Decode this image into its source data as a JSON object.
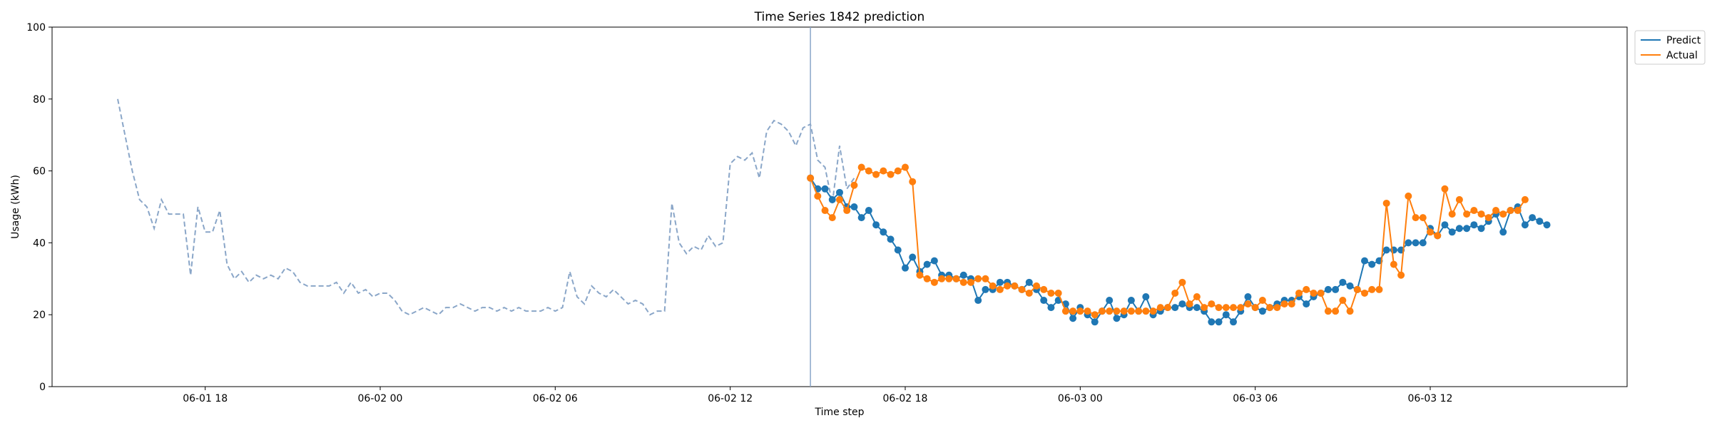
{
  "chart_data": {
    "type": "line",
    "title": "Time Series 1842 prediction",
    "xlabel": "Time step",
    "ylabel": "Usage (kWh)",
    "ylim": [
      0,
      100
    ],
    "yticks": [
      0,
      20,
      40,
      60,
      80,
      100
    ],
    "xlim": [
      "2024-06-01T12:45",
      "2024-06-03T18:45"
    ],
    "xticks": [
      {
        "t": "2024-06-01T18:00",
        "label": "06-01 18"
      },
      {
        "t": "2024-06-02T00:00",
        "label": "06-02 00"
      },
      {
        "t": "2024-06-02T06:00",
        "label": "06-02 06"
      },
      {
        "t": "2024-06-02T12:00",
        "label": "06-02 12"
      },
      {
        "t": "2024-06-02T18:00",
        "label": "06-02 18"
      },
      {
        "t": "2024-06-03T00:00",
        "label": "06-03 00"
      },
      {
        "t": "2024-06-03T06:00",
        "label": "06-03 06"
      },
      {
        "t": "2024-06-03T12:00",
        "label": "06-03 12"
      }
    ],
    "grid": false,
    "legend_position": "outside-top-right",
    "vertical_marker_x": "2024-06-02T14:45",
    "colors": {
      "history": "#8aa6c8",
      "predict": "#1f77b4",
      "actual": "#ff7f0e",
      "marker": "#8aa6c8"
    },
    "history": {
      "start": "2024-06-01T15:00",
      "step_minutes": 15,
      "values": [
        80,
        70,
        60,
        52,
        50,
        44,
        52,
        48,
        48,
        48,
        31,
        50,
        43,
        43,
        49,
        34,
        30,
        32,
        29,
        31,
        30,
        31,
        30,
        33,
        32,
        29,
        28,
        28,
        28,
        28,
        29,
        26,
        29,
        26,
        27,
        25,
        26,
        26,
        24,
        21,
        20,
        21,
        22,
        21,
        20,
        22,
        22,
        23,
        22,
        21,
        22,
        22,
        21,
        22,
        21,
        22,
        21,
        21,
        21,
        22,
        21,
        22,
        32,
        25,
        23,
        28,
        26,
        25,
        27,
        25,
        23,
        24,
        23,
        20,
        21,
        21,
        51,
        40,
        37,
        39,
        38,
        42,
        39,
        40,
        62,
        64,
        63,
        65,
        58,
        71,
        74,
        73,
        71,
        67,
        72,
        73,
        63,
        61,
        51,
        67,
        55,
        58
      ]
    },
    "series": [
      {
        "name": "Predict",
        "start": "2024-06-02T14:45",
        "step_minutes": 15,
        "values": [
          58,
          55,
          55,
          52,
          54,
          50,
          50,
          47,
          49,
          45,
          43,
          41,
          38,
          33,
          36,
          32,
          34,
          35,
          31,
          31,
          30,
          31,
          30,
          24,
          27,
          27,
          29,
          29,
          28,
          27,
          29,
          27,
          24,
          22,
          24,
          23,
          19,
          22,
          20,
          18,
          21,
          24,
          19,
          20,
          24,
          21,
          25,
          20,
          21,
          22,
          22,
          23,
          22,
          22,
          21,
          18,
          18,
          20,
          18,
          21,
          25,
          22,
          21,
          22,
          23,
          24,
          24,
          25,
          23,
          25,
          26,
          27,
          27,
          29,
          28,
          27,
          35,
          34,
          35,
          38,
          38,
          38,
          40,
          40,
          40,
          44,
          42,
          45,
          43,
          44,
          44,
          45,
          44,
          46,
          48,
          43,
          49,
          50,
          45,
          47,
          46,
          45
        ]
      },
      {
        "name": "Actual",
        "start": "2024-06-02T14:45",
        "step_minutes": 15,
        "values": [
          58,
          53,
          49,
          47,
          52,
          49,
          56,
          61,
          60,
          59,
          60,
          59,
          60,
          61,
          57,
          31,
          30,
          29,
          30,
          30,
          30,
          29,
          29,
          30,
          30,
          28,
          27,
          28,
          28,
          27,
          26,
          28,
          27,
          26,
          26,
          21,
          21,
          21,
          21,
          20,
          21,
          21,
          21,
          21,
          21,
          21,
          21,
          21,
          22,
          22,
          26,
          29,
          23,
          25,
          22,
          23,
          22,
          22,
          22,
          22,
          23,
          22,
          24,
          22,
          22,
          23,
          23,
          26,
          27,
          26,
          26,
          21,
          21,
          24,
          21,
          27,
          26,
          27,
          27,
          51,
          34,
          31,
          53,
          47,
          47,
          43,
          42,
          55,
          48,
          52,
          48,
          49,
          48,
          47,
          49,
          48,
          49,
          49,
          52
        ]
      }
    ]
  }
}
